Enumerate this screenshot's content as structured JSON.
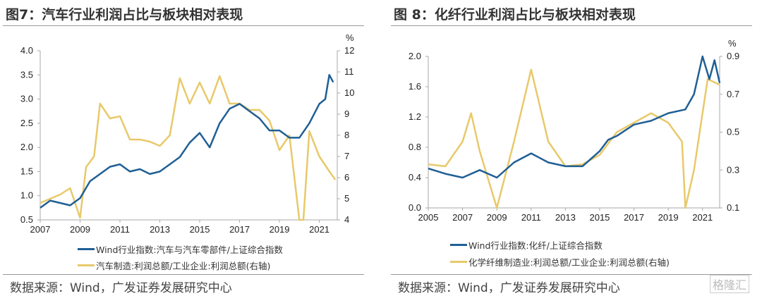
{
  "colors": {
    "blue": "#1f5f95",
    "yellow": "#e8c96a"
  },
  "source": "数据来源：Wind，广发证券发展研究中心",
  "watermark": "格隆汇",
  "chart_data": [
    {
      "type": "line",
      "title": "图7：汽车行业利润占比与板块相对表现",
      "x_ticks": [
        "2007",
        "2009",
        "2011",
        "2013",
        "2015",
        "2017",
        "2019",
        "2021"
      ],
      "xlim": [
        2007,
        2021.9
      ],
      "y_left": {
        "ticks": [
          "0.5",
          "1.0",
          "1.5",
          "2.0",
          "2.5",
          "3.0",
          "3.5",
          "4.0"
        ],
        "lim": [
          0.5,
          4.0
        ]
      },
      "y_right": {
        "unit": "%",
        "ticks": [
          "4",
          "5",
          "6",
          "7",
          "8",
          "9",
          "10",
          "11",
          "12"
        ],
        "lim": [
          4,
          12
        ]
      },
      "series": [
        {
          "name": "Wind行业指数:汽车与汽车零部件/上证综合指数",
          "axis": "left",
          "color": "blue",
          "x": [
            2007,
            2007.5,
            2008,
            2008.5,
            2009,
            2009.5,
            2010,
            2010.5,
            2011,
            2011.5,
            2012,
            2012.5,
            2013,
            2013.5,
            2014,
            2014.5,
            2015,
            2015.5,
            2016,
            2016.5,
            2017,
            2017.5,
            2018,
            2018.5,
            2019,
            2019.5,
            2020,
            2020.5,
            2021,
            2021.3,
            2021.5,
            2021.7
          ],
          "y": [
            0.75,
            0.9,
            0.85,
            0.8,
            0.95,
            1.3,
            1.45,
            1.6,
            1.65,
            1.5,
            1.55,
            1.45,
            1.5,
            1.65,
            1.8,
            2.1,
            2.3,
            2.0,
            2.5,
            2.8,
            2.9,
            2.75,
            2.6,
            2.35,
            2.35,
            2.2,
            2.2,
            2.5,
            2.9,
            3.0,
            3.5,
            3.35
          ]
        },
        {
          "name": "汽车制造:利润总额/工业企业:利润总额(右轴)",
          "axis": "right",
          "color": "yellow",
          "x": [
            2007,
            2007.5,
            2008,
            2008.5,
            2009,
            2009.3,
            2009.7,
            2010,
            2010.5,
            2011,
            2011.5,
            2012,
            2012.5,
            2013,
            2013.5,
            2014,
            2014.5,
            2015,
            2015.5,
            2016,
            2016.5,
            2017,
            2017.5,
            2018,
            2018.5,
            2019,
            2019.5,
            2020,
            2020.2,
            2020.5,
            2021,
            2021.5,
            2021.8
          ],
          "y": [
            4.8,
            5.0,
            5.2,
            5.5,
            4.1,
            6.5,
            7.0,
            9.5,
            8.8,
            8.9,
            7.8,
            7.8,
            7.7,
            7.5,
            8.0,
            10.7,
            9.5,
            10.5,
            9.5,
            10.8,
            9.5,
            9.5,
            9.2,
            9.2,
            8.7,
            7.3,
            8.0,
            4.0,
            4.0,
            8.2,
            7.0,
            6.3,
            5.9
          ]
        }
      ]
    },
    {
      "type": "line",
      "title": "图 8：化纤行业利润占比与板块相对表现",
      "x_ticks": [
        "2005",
        "2007",
        "2009",
        "2011",
        "2013",
        "2015",
        "2017",
        "2019",
        "2021"
      ],
      "xlim": [
        2005,
        2022
      ],
      "y_left": {
        "ticks": [
          "0.0",
          "0.4",
          "0.8",
          "1.2",
          "1.6",
          "2.0"
        ],
        "lim": [
          0,
          2.0
        ]
      },
      "y_right": {
        "unit": "%",
        "ticks": [
          "0.1",
          "0.3",
          "0.5",
          "0.7",
          "0.9"
        ],
        "lim": [
          0.1,
          0.9
        ]
      },
      "series": [
        {
          "name": "Wind行业指数:化纤/上证综合指数",
          "axis": "left",
          "color": "blue",
          "x": [
            2005,
            2006,
            2007,
            2008,
            2009,
            2010,
            2011,
            2012,
            2013,
            2014,
            2015,
            2015.5,
            2016,
            2017,
            2018,
            2019,
            2020,
            2020.5,
            2021,
            2021.4,
            2021.7,
            2022
          ],
          "y": [
            0.52,
            0.45,
            0.4,
            0.5,
            0.4,
            0.6,
            0.72,
            0.6,
            0.55,
            0.55,
            0.75,
            0.9,
            0.95,
            1.1,
            1.15,
            1.25,
            1.3,
            1.5,
            2.0,
            1.7,
            1.95,
            1.65
          ]
        },
        {
          "name": "化学纤维制造业:利润总额/工业企业:利润总额(右轴)",
          "axis": "right",
          "color": "yellow",
          "x": [
            2005,
            2006,
            2007,
            2007.5,
            2008,
            2009,
            2010,
            2011,
            2012,
            2013,
            2014,
            2015,
            2016,
            2017,
            2018,
            2019,
            2019.8,
            2020,
            2020.5,
            2021,
            2021.3,
            2022
          ],
          "y": [
            0.33,
            0.32,
            0.45,
            0.6,
            0.4,
            0.1,
            0.45,
            0.83,
            0.45,
            0.32,
            0.33,
            0.38,
            0.5,
            0.55,
            0.6,
            0.55,
            0.45,
            0.1,
            0.3,
            0.6,
            0.78,
            0.75
          ]
        }
      ]
    }
  ]
}
